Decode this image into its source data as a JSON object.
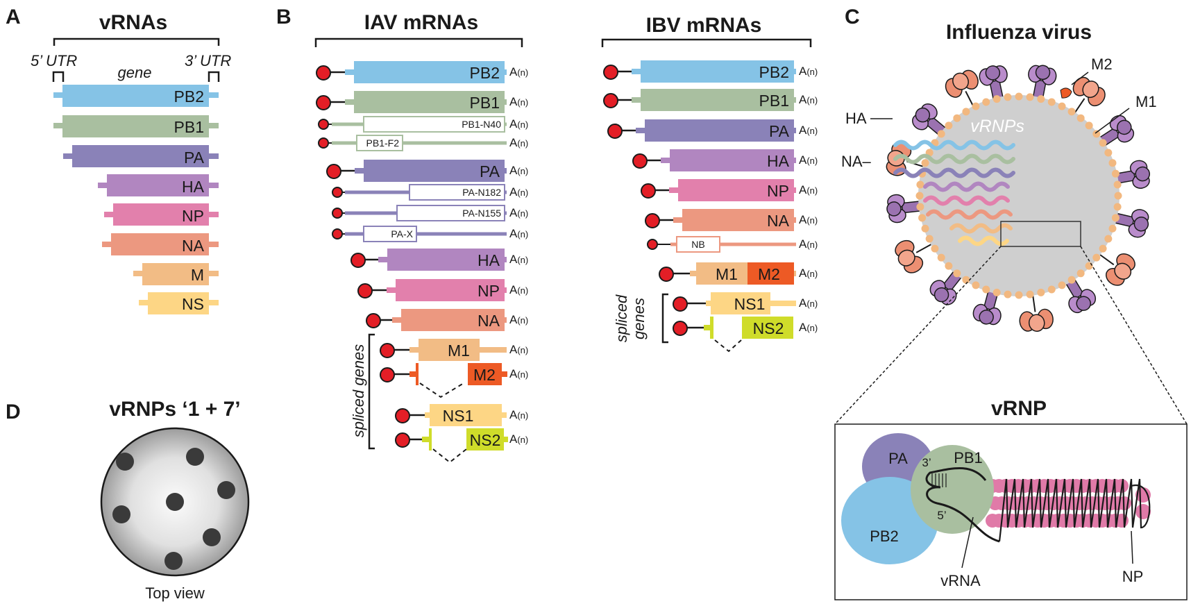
{
  "panels": {
    "A": {
      "letter": "A",
      "title": "vRNAs",
      "utr5": "5’ UTR",
      "gene": "gene",
      "utr3": "3’ UTR",
      "segments": [
        "PB2",
        "PB1",
        "PA",
        "HA",
        "NP",
        "NA",
        "M",
        "NS"
      ]
    },
    "B": {
      "letter": "B",
      "iav_title": "IAV mRNAs",
      "ibv_title": "IBV mRNAs",
      "polyA": "A(n)",
      "polyA_base": "A",
      "polyA_sub": "(n)",
      "iav": {
        "PB2": "PB2",
        "PB1": "PB1",
        "PB1_N40": "PB1-N40",
        "PB1_F2": "PB1-F2",
        "PA": "PA",
        "PA_N182": "PA-N182",
        "PA_N155": "PA-N155",
        "PA_X": "PA-X",
        "HA": "HA",
        "NP": "NP",
        "NA": "NA",
        "M1": "M1",
        "M2": "M2",
        "NS1": "NS1",
        "NS2": "NS2",
        "spliced": "spliced genes"
      },
      "ibv": {
        "PB2": "PB2",
        "PB1": "PB1",
        "PA": "PA",
        "HA": "HA",
        "NP": "NP",
        "NA": "NA",
        "NB": "NB",
        "M1": "M1",
        "M2": "M2",
        "NS1": "NS1",
        "NS2": "NS2",
        "spliced1": "spliced",
        "spliced2": "genes"
      }
    },
    "C": {
      "letter": "C",
      "title": "Influenza virus",
      "vrnps": "vRNPs",
      "HA": "HA",
      "NA": "NA–",
      "M2": "M2",
      "M1": "M1",
      "vrnp_title": "vRNP",
      "PA": "PA",
      "PB1": "PB1",
      "PB2": "PB2",
      "three_prime": "3’",
      "five_prime": "5’",
      "vRNA": "vRNA",
      "NP": "NP"
    },
    "D": {
      "letter": "D",
      "title": "vRNPs ‘1 + 7’",
      "caption": "Top view"
    }
  },
  "colors": {
    "PB2": "#85c3e6",
    "PB1": "#a9bfa0",
    "PA": "#8a82b8",
    "HA": "#b186c0",
    "NP": "#e280ac",
    "NA": "#ec9880",
    "M": "#f2bc85",
    "NS": "#fdd685",
    "M2": "#ed5a25",
    "NS2": "#cfdc2a",
    "cap": "#e31e26",
    "virion_gray": "#cfcfcf",
    "lipid": "#f2b880",
    "HA_spike": "#9b72b0",
    "NA_spike": "#ec8f72"
  }
}
